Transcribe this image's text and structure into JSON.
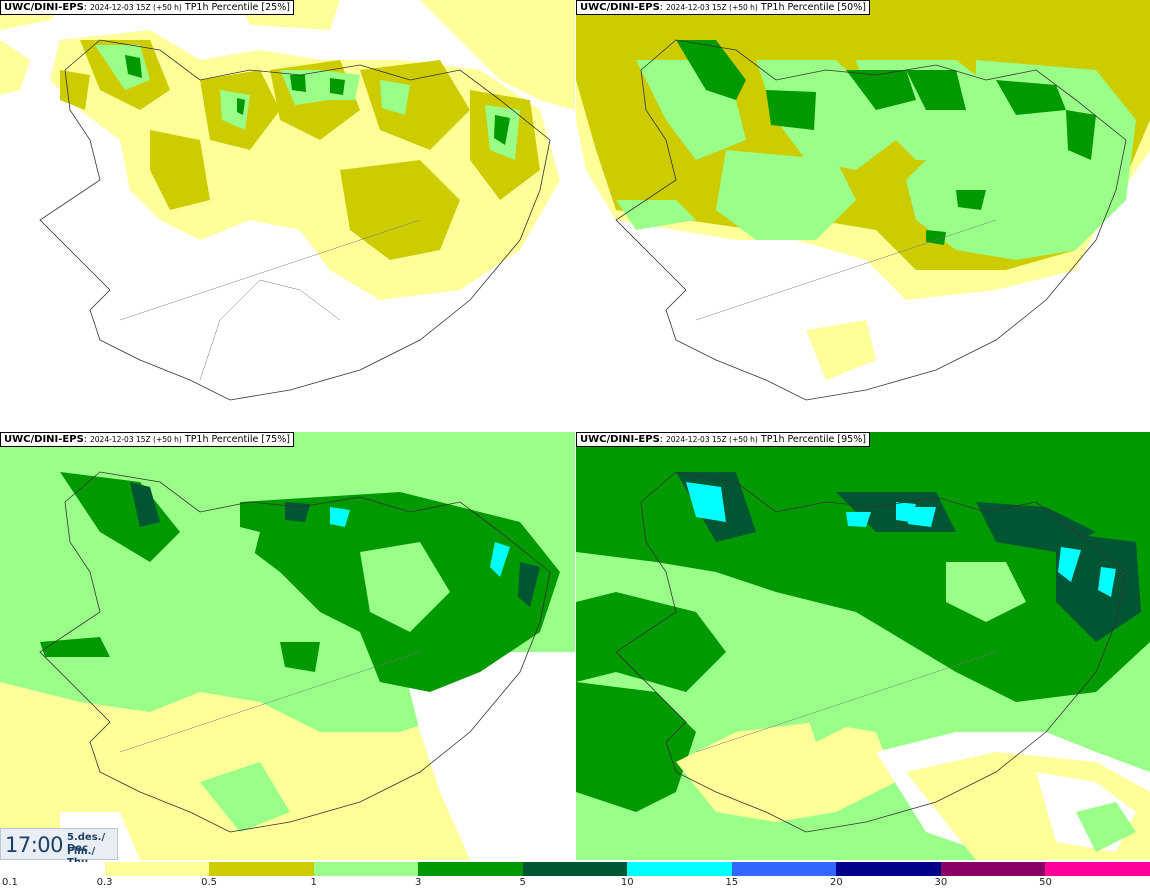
{
  "panels": [
    {
      "header_prefix": "UWC/DINI-EPS",
      "header_meta": "2024-12-03 15Z (+50 h)",
      "header_title": "TP1h Percentile [25%]"
    },
    {
      "header_prefix": "UWC/DINI-EPS",
      "header_meta": "2024-12-03 15Z (+50 h)",
      "header_title": "TP1h Percentile [50%]"
    },
    {
      "header_prefix": "UWC/DINI-EPS",
      "header_meta": "2024-12-03 15Z (+50 h)",
      "header_title": "TP1h Percentile [75%]"
    },
    {
      "header_prefix": "UWC/DINI-EPS",
      "header_meta": "2024-12-03 15Z (+50 h)",
      "header_title": "TP1h Percentile [95%]"
    }
  ],
  "valid_time": {
    "time": "17:00",
    "date": "5.des./ Dec",
    "weekday": "Fim./ Thu"
  },
  "legend": {
    "colors": [
      "#ffffff",
      "#ffff99",
      "#cccc00",
      "#99ff88",
      "#009900",
      "#005533",
      "#00ffff",
      "#3366ff",
      "#000088",
      "#880066",
      "#ff0099",
      "#ff0000"
    ],
    "ticks": [
      "0.1",
      "0.3",
      "0.5",
      "1",
      "3",
      "5",
      "10",
      "15",
      "20",
      "30",
      "50"
    ]
  },
  "colors": {
    "level_01": "#ffff99",
    "level_03": "#cccc00",
    "level_05": "#99ff88",
    "level_1": "#009900",
    "level_3": "#005533",
    "level_5": "#00ffff"
  }
}
